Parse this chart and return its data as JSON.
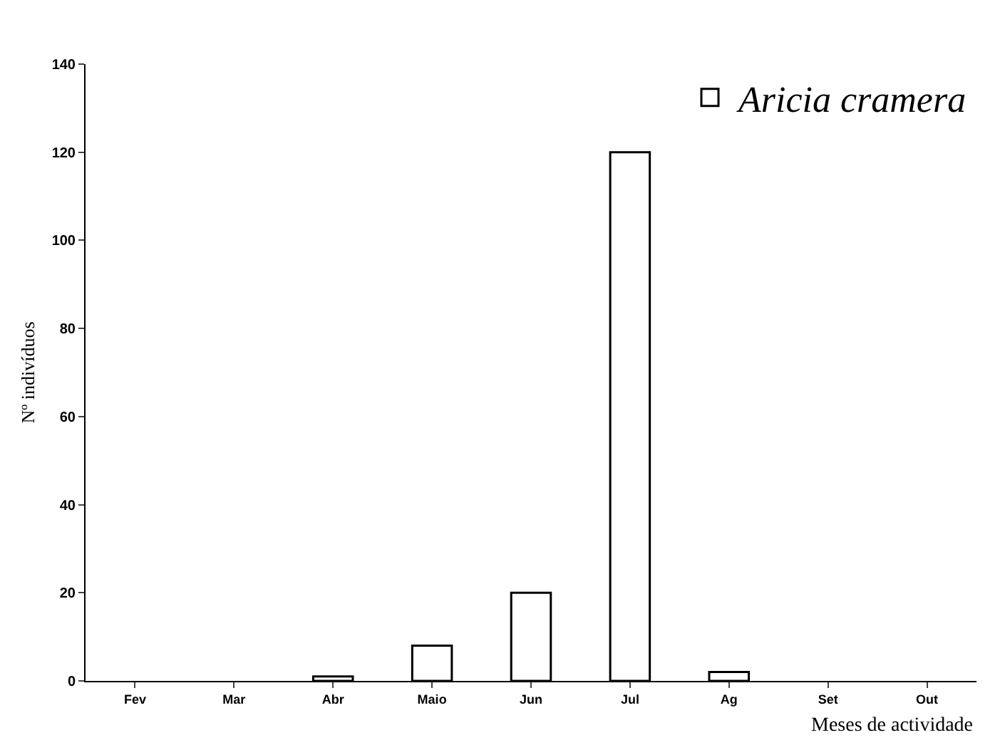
{
  "chart_data": {
    "type": "bar",
    "xlabel": "Meses de actividade",
    "ylabel": "Nº indivíduos",
    "categories": [
      "Fev",
      "Mar",
      "Abr",
      "Maio",
      "Jun",
      "Jul",
      "Ag",
      "Set",
      "Out"
    ],
    "series": [
      {
        "name": "Aricia cramera",
        "color": "#ffffff",
        "values": [
          0,
          0,
          1,
          8,
          20,
          120,
          2,
          0,
          0
        ]
      }
    ],
    "ylim": [
      0,
      140
    ],
    "yticks": [
      0,
      20,
      40,
      60,
      80,
      100,
      120,
      140
    ],
    "grid": false,
    "legend": "top right"
  }
}
